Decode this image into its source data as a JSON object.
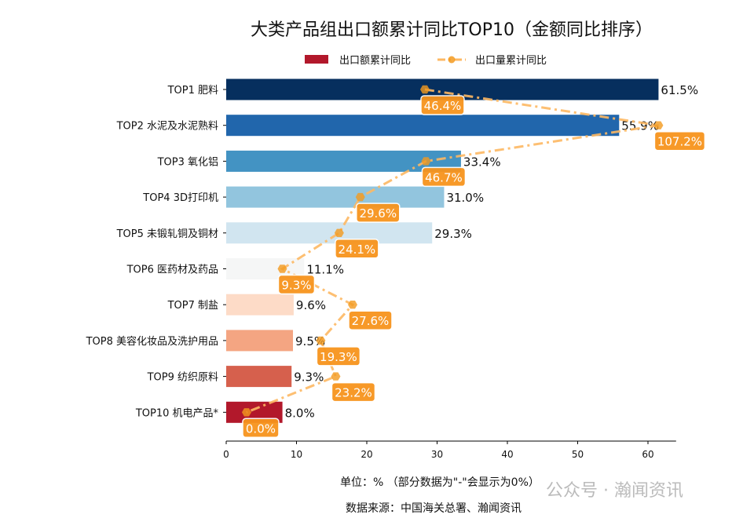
{
  "chart_data": {
    "type": "bar",
    "orientation": "horizontal",
    "title": "大类产品组出口额累计同比TOP10（金额同比排序）",
    "categories": [
      "TOP1 肥料",
      "TOP2 水泥及水泥熟料",
      "TOP3 氧化铝",
      "TOP4 3D打印机",
      "TOP5 未锻轧铜及铜材",
      "TOP6 医药材及药品",
      "TOP7 制盐",
      "TOP8 美容化妆品及洗护用品",
      "TOP9 纺织原料",
      "TOP10 机电产品*"
    ],
    "series": [
      {
        "name": "出口额累计同比",
        "type": "bar",
        "values": [
          61.5,
          55.9,
          33.4,
          31.0,
          29.3,
          11.1,
          9.6,
          9.5,
          9.3,
          8.0
        ],
        "labels": [
          "61.5%",
          "55.9%",
          "33.4%",
          "31.0%",
          "29.3%",
          "11.1%",
          "9.6%",
          "9.5%",
          "9.3%",
          "8.0%"
        ],
        "colors": [
          "#062f5e",
          "#2166ac",
          "#4393c3",
          "#92c5de",
          "#d1e5f0",
          "#f5f6f6",
          "#fddbc7",
          "#f4a582",
          "#d6604d",
          "#b2182b"
        ]
      },
      {
        "name": "出口量累计同比",
        "type": "line",
        "values": [
          46.4,
          107.2,
          46.7,
          29.6,
          24.1,
          9.3,
          27.6,
          19.3,
          23.2,
          0.0
        ],
        "labels": [
          "46.4%",
          "107.2%",
          "46.7%",
          "29.6%",
          "24.1%",
          "9.3%",
          "27.6%",
          "19.3%",
          "23.2%",
          "0.0%"
        ],
        "color": "#fdb863",
        "marker_color": "#f39a1e",
        "label_bg": "#f7941d"
      }
    ],
    "xticks": [
      "0",
      "10",
      "20",
      "30",
      "40",
      "50",
      "60"
    ],
    "xlim": [
      0,
      64
    ],
    "grid": false,
    "legend": "top-center"
  },
  "footer": {
    "unit": "单位：%  （部分数据为\"-\"会显示为0%）",
    "source": "数据来源：中国海关总署、瀚闻资讯",
    "watermark": "公众号 · 瀚闻资讯"
  }
}
